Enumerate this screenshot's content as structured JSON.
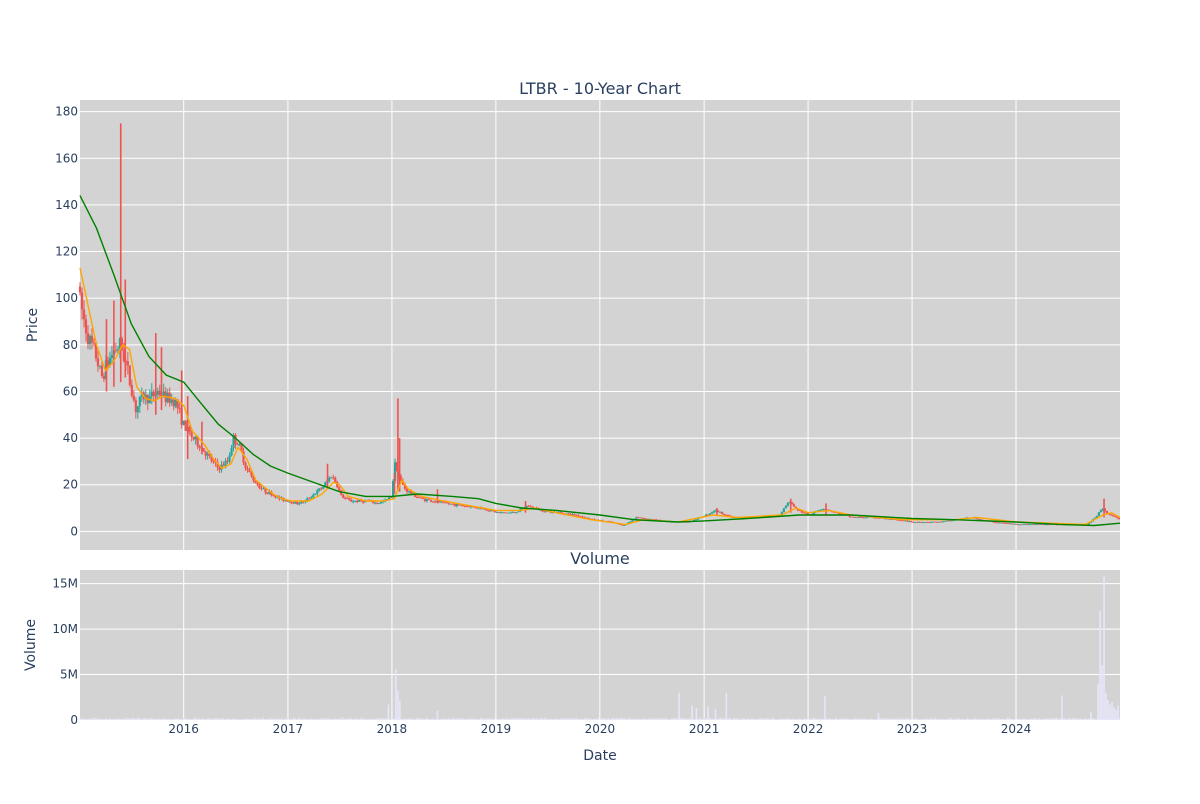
{
  "chart_data": [
    {
      "type": "candlestick",
      "title": "LTBR - 10-Year Chart",
      "ylabel": "Price",
      "ylim": [
        -8,
        185
      ],
      "y_ticks": [
        0,
        20,
        40,
        60,
        80,
        100,
        120,
        140,
        160,
        180
      ],
      "y_tick_labels": [
        "0",
        "20",
        "40",
        "60",
        "80",
        "100",
        "120",
        "140",
        "160",
        "180"
      ],
      "xlim": [
        "2015-01-02",
        "2024-12-31"
      ],
      "grid": true,
      "legend": "none",
      "colors": {
        "background": "#d3d3d3",
        "up": "#26a69a",
        "down": "#ef5350",
        "sma_short": "#ffa500",
        "sma_long": "#008000",
        "grid": "#ffffff"
      },
      "price_path": [
        [
          "2015-01-02",
          105
        ],
        [
          "2015-01-20",
          92
        ],
        [
          "2015-02-10",
          82
        ],
        [
          "2015-03-05",
          76
        ],
        [
          "2015-03-25",
          66
        ],
        [
          "2015-04-15",
          72
        ],
        [
          "2015-05-10",
          78
        ],
        [
          "2015-06-01",
          80
        ],
        [
          "2015-06-20",
          72
        ],
        [
          "2015-07-10",
          60
        ],
        [
          "2015-07-25",
          52
        ],
        [
          "2015-08-15",
          58
        ],
        [
          "2015-09-10",
          57
        ],
        [
          "2015-10-10",
          60
        ],
        [
          "2015-11-10",
          57
        ],
        [
          "2015-12-10",
          56
        ],
        [
          "2016-01-10",
          45
        ],
        [
          "2016-02-10",
          40
        ],
        [
          "2016-03-10",
          36
        ],
        [
          "2016-04-10",
          31
        ],
        [
          "2016-05-10",
          27
        ],
        [
          "2016-06-10",
          30
        ],
        [
          "2016-07-01",
          40
        ],
        [
          "2016-07-20",
          37
        ],
        [
          "2016-08-15",
          27
        ],
        [
          "2016-09-10",
          22
        ],
        [
          "2016-10-10",
          18
        ],
        [
          "2016-11-10",
          16
        ],
        [
          "2016-12-10",
          14
        ],
        [
          "2017-01-10",
          13
        ],
        [
          "2017-02-10",
          12
        ],
        [
          "2017-03-10",
          13
        ],
        [
          "2017-04-10",
          16
        ],
        [
          "2017-05-10",
          19
        ],
        [
          "2017-06-10",
          24
        ],
        [
          "2017-06-25",
          21
        ],
        [
          "2017-07-15",
          15
        ],
        [
          "2017-08-15",
          13
        ],
        [
          "2017-09-15",
          13
        ],
        [
          "2017-10-15",
          13
        ],
        [
          "2017-11-15",
          12
        ],
        [
          "2017-12-15",
          13
        ],
        [
          "2018-01-05",
          15
        ],
        [
          "2018-01-20",
          30
        ],
        [
          "2018-02-05",
          22
        ],
        [
          "2018-02-25",
          18
        ],
        [
          "2018-03-20",
          16
        ],
        [
          "2018-04-20",
          14
        ],
        [
          "2018-06-01",
          13
        ],
        [
          "2018-07-15",
          12
        ],
        [
          "2018-09-15",
          11
        ],
        [
          "2018-11-15",
          10
        ],
        [
          "2019-01-15",
          8
        ],
        [
          "2019-03-15",
          8
        ],
        [
          "2019-05-01",
          11
        ],
        [
          "2019-06-15",
          9
        ],
        [
          "2019-08-15",
          8
        ],
        [
          "2019-10-15",
          7
        ],
        [
          "2019-12-15",
          5
        ],
        [
          "2020-02-15",
          4
        ],
        [
          "2020-04-01",
          2.5
        ],
        [
          "2020-05-15",
          6
        ],
        [
          "2020-07-15",
          5
        ],
        [
          "2020-09-15",
          4
        ],
        [
          "2020-11-15",
          4
        ],
        [
          "2021-01-15",
          7
        ],
        [
          "2021-02-15",
          9
        ],
        [
          "2021-04-15",
          6
        ],
        [
          "2021-06-15",
          6
        ],
        [
          "2021-08-15",
          6
        ],
        [
          "2021-10-01",
          7
        ],
        [
          "2021-11-01",
          13
        ],
        [
          "2021-12-01",
          9
        ],
        [
          "2022-01-15",
          7
        ],
        [
          "2022-03-01",
          10
        ],
        [
          "2022-04-15",
          8
        ],
        [
          "2022-06-15",
          6
        ],
        [
          "2022-09-01",
          6
        ],
        [
          "2022-11-01",
          5
        ],
        [
          "2023-01-15",
          4
        ],
        [
          "2023-04-15",
          4
        ],
        [
          "2023-06-15",
          5
        ],
        [
          "2023-08-01",
          6
        ],
        [
          "2023-10-15",
          4
        ],
        [
          "2024-01-15",
          3
        ],
        [
          "2024-04-15",
          3
        ],
        [
          "2024-07-01",
          3
        ],
        [
          "2024-09-15",
          3
        ],
        [
          "2024-10-20",
          7
        ],
        [
          "2024-11-05",
          10
        ],
        [
          "2024-12-01",
          7
        ],
        [
          "2024-12-31",
          5.5
        ]
      ],
      "spikes": [
        [
          "2015-05-01",
          62,
          99
        ],
        [
          "2015-05-25",
          64,
          175
        ],
        [
          "2015-06-10",
          66,
          108
        ],
        [
          "2015-04-05",
          60,
          91
        ],
        [
          "2015-09-25",
          50,
          85
        ],
        [
          "2015-10-15",
          52,
          79
        ],
        [
          "2015-12-25",
          50,
          69
        ],
        [
          "2016-01-15",
          31,
          58
        ],
        [
          "2016-03-05",
          33,
          47
        ],
        [
          "2017-05-20",
          18,
          29
        ],
        [
          "2018-01-10",
          16,
          25
        ],
        [
          "2018-01-22",
          18,
          57
        ],
        [
          "2018-01-28",
          17,
          40
        ],
        [
          "2018-06-10",
          12,
          18
        ],
        [
          "2019-04-15",
          8,
          13
        ],
        [
          "2021-02-15",
          7,
          10
        ],
        [
          "2021-11-01",
          8,
          14
        ],
        [
          "2022-03-05",
          7,
          12
        ],
        [
          "2024-11-05",
          6,
          14
        ]
      ],
      "sma_short_path": [
        [
          "2015-01-02",
          113
        ],
        [
          "2015-02-01",
          96
        ],
        [
          "2015-03-01",
          80
        ],
        [
          "2015-04-01",
          69
        ],
        [
          "2015-05-01",
          73
        ],
        [
          "2015-06-01",
          80
        ],
        [
          "2015-06-25",
          78
        ],
        [
          "2015-07-20",
          62
        ],
        [
          "2015-08-20",
          57
        ],
        [
          "2015-09-20",
          56
        ],
        [
          "2015-10-20",
          58
        ],
        [
          "2015-12-01",
          57
        ],
        [
          "2016-01-01",
          54
        ],
        [
          "2016-02-01",
          43
        ],
        [
          "2016-03-15",
          37
        ],
        [
          "2016-04-15",
          31
        ],
        [
          "2016-05-15",
          27
        ],
        [
          "2016-06-15",
          29
        ],
        [
          "2016-07-10",
          36
        ],
        [
          "2016-08-10",
          31
        ],
        [
          "2016-09-10",
          22
        ],
        [
          "2016-10-10",
          19
        ],
        [
          "2016-11-10",
          16
        ],
        [
          "2016-12-10",
          14
        ],
        [
          "2017-01-15",
          13
        ],
        [
          "2017-03-15",
          13
        ],
        [
          "2017-05-01",
          16
        ],
        [
          "2017-06-10",
          21
        ],
        [
          "2017-07-01",
          20
        ],
        [
          "2017-08-01",
          15
        ],
        [
          "2017-10-01",
          13
        ],
        [
          "2017-12-01",
          13
        ],
        [
          "2018-01-10",
          14
        ],
        [
          "2018-02-05",
          22
        ],
        [
          "2018-03-01",
          18
        ],
        [
          "2018-04-15",
          15
        ],
        [
          "2018-07-01",
          13
        ],
        [
          "2018-10-01",
          11
        ],
        [
          "2019-01-01",
          9
        ],
        [
          "2019-04-01",
          9
        ],
        [
          "2019-05-15",
          10
        ],
        [
          "2019-08-01",
          8
        ],
        [
          "2019-12-01",
          5
        ],
        [
          "2020-04-01",
          3
        ],
        [
          "2020-06-01",
          5
        ],
        [
          "2020-10-01",
          4
        ],
        [
          "2021-02-01",
          7
        ],
        [
          "2021-05-01",
          6
        ],
        [
          "2021-10-01",
          7
        ],
        [
          "2021-11-20",
          10
        ],
        [
          "2022-01-01",
          8
        ],
        [
          "2022-03-15",
          9
        ],
        [
          "2022-06-01",
          7
        ],
        [
          "2022-12-01",
          5
        ],
        [
          "2023-06-01",
          5
        ],
        [
          "2023-08-15",
          6
        ],
        [
          "2024-01-01",
          4
        ],
        [
          "2024-09-01",
          3
        ],
        [
          "2024-11-01",
          7
        ],
        [
          "2024-12-01",
          8
        ],
        [
          "2024-12-31",
          6
        ]
      ],
      "sma_long_path": [
        [
          "2015-01-02",
          144
        ],
        [
          "2015-03-01",
          130
        ],
        [
          "2015-05-01",
          110
        ],
        [
          "2015-07-01",
          89
        ],
        [
          "2015-09-01",
          75
        ],
        [
          "2015-11-01",
          67
        ],
        [
          "2016-01-01",
          64
        ],
        [
          "2016-03-01",
          55
        ],
        [
          "2016-05-01",
          46
        ],
        [
          "2016-07-01",
          40
        ],
        [
          "2016-09-01",
          33
        ],
        [
          "2016-11-01",
          28
        ],
        [
          "2017-01-01",
          25
        ],
        [
          "2017-04-01",
          21
        ],
        [
          "2017-07-01",
          17
        ],
        [
          "2017-10-01",
          15
        ],
        [
          "2018-01-01",
          15
        ],
        [
          "2018-04-01",
          16
        ],
        [
          "2018-08-01",
          15
        ],
        [
          "2018-11-01",
          14
        ],
        [
          "2019-01-01",
          12
        ],
        [
          "2019-04-01",
          10
        ],
        [
          "2019-08-01",
          9
        ],
        [
          "2020-01-01",
          7
        ],
        [
          "2020-05-01",
          5
        ],
        [
          "2020-10-01",
          4
        ],
        [
          "2021-01-01",
          4.5
        ],
        [
          "2021-06-01",
          5.5
        ],
        [
          "2021-12-01",
          7
        ],
        [
          "2022-06-01",
          7
        ],
        [
          "2023-01-01",
          5.5
        ],
        [
          "2023-06-01",
          5
        ],
        [
          "2024-01-01",
          4
        ],
        [
          "2024-06-01",
          3
        ],
        [
          "2024-10-01",
          2.5
        ],
        [
          "2024-12-31",
          3.5
        ]
      ]
    },
    {
      "type": "bar",
      "title": "Volume",
      "xlabel": "Date",
      "ylabel": "Volume",
      "ylim": [
        0,
        16500000
      ],
      "y_ticks": [
        0,
        5000000,
        10000000,
        15000000
      ],
      "y_tick_labels": [
        "0",
        "5M",
        "10M",
        "15M"
      ],
      "x_ticks": [
        "2016-01-01",
        "2017-01-01",
        "2018-01-01",
        "2019-01-01",
        "2020-01-01",
        "2021-01-01",
        "2022-01-01",
        "2023-01-01",
        "2024-01-01"
      ],
      "x_tick_labels": [
        "2016",
        "2017",
        "2018",
        "2019",
        "2020",
        "2021",
        "2022",
        "2023",
        "2024"
      ],
      "xlim": [
        "2015-01-02",
        "2024-12-31"
      ],
      "grid": true,
      "colors": {
        "bars": "#e6e6fa",
        "background": "#d3d3d3"
      },
      "bars": [
        [
          "2017-12-20",
          1700000
        ],
        [
          "2018-01-15",
          5600000
        ],
        [
          "2018-01-22",
          3200000
        ],
        [
          "2018-01-29",
          2100000
        ],
        [
          "2018-06-10",
          1000000
        ],
        [
          "2020-10-05",
          3000000
        ],
        [
          "2020-11-20",
          1600000
        ],
        [
          "2020-12-05",
          1300000
        ],
        [
          "2021-01-15",
          1500000
        ],
        [
          "2021-02-10",
          1200000
        ],
        [
          "2021-03-20",
          3000000
        ],
        [
          "2022-03-01",
          2600000
        ],
        [
          "2022-09-05",
          800000
        ],
        [
          "2024-06-10",
          2700000
        ],
        [
          "2024-09-20",
          900000
        ],
        [
          "2024-10-15",
          4000000
        ],
        [
          "2024-10-22",
          12000000
        ],
        [
          "2024-10-29",
          6000000
        ],
        [
          "2024-11-05",
          15800000
        ],
        [
          "2024-11-12",
          3000000
        ],
        [
          "2024-11-19",
          2200000
        ],
        [
          "2024-11-26",
          1700000
        ],
        [
          "2024-12-03",
          2000000
        ],
        [
          "2024-12-10",
          1400000
        ],
        [
          "2024-12-17",
          1100000
        ],
        [
          "2024-12-24",
          1600000
        ]
      ]
    }
  ]
}
